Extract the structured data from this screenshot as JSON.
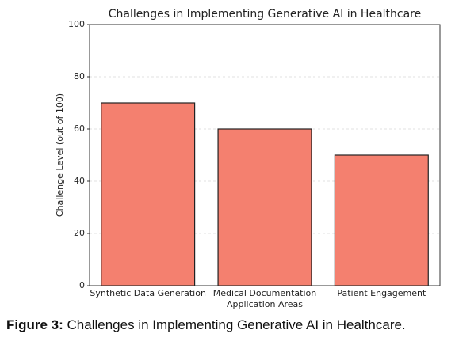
{
  "chart_data": {
    "type": "bar",
    "title": "Challenges in Implementing Generative AI in Healthcare",
    "x_label": "Application Areas",
    "y_label": "Challenge Level (out of 100)",
    "categories": [
      "Synthetic Data Generation",
      "Medical Documentation",
      "Patient Engagement"
    ],
    "values": [
      70,
      60,
      50
    ],
    "color": "#f4806f",
    "ylim": [
      0,
      100
    ],
    "yticks": [
      0,
      20,
      40,
      60,
      80,
      100
    ],
    "grid": true
  },
  "caption": {
    "label": "Figure 3:",
    "text": "Challenges in Implementing Generative AI in Healthcare."
  }
}
